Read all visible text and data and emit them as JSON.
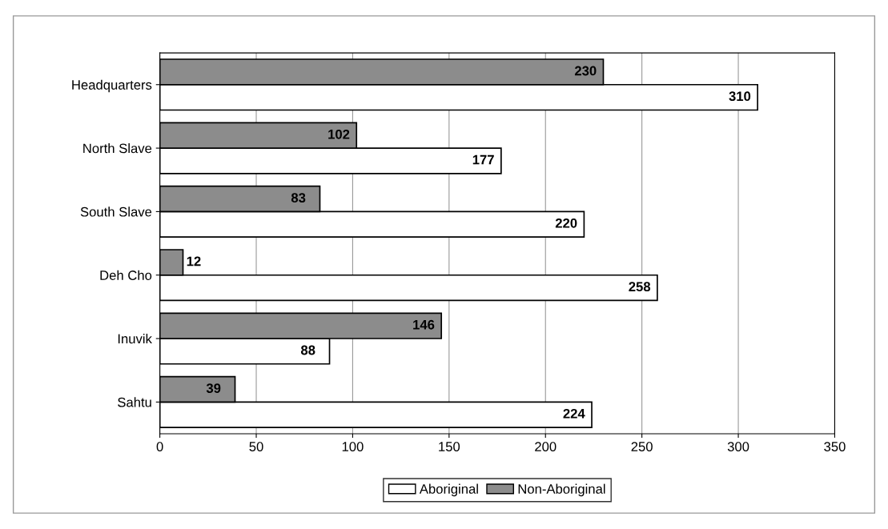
{
  "chart_data": {
    "type": "bar",
    "orientation": "horizontal",
    "categories": [
      "Headquarters",
      "North Slave",
      "South Slave",
      "Deh Cho",
      "Inuvik",
      "Sahtu"
    ],
    "series": [
      {
        "name": "Aboriginal",
        "color": "#ffffff",
        "values": [
          310,
          177,
          220,
          258,
          88,
          224
        ]
      },
      {
        "name": "Non-Aboriginal",
        "color": "#8c8c8c",
        "values": [
          230,
          102,
          83,
          12,
          146,
          39
        ]
      }
    ],
    "xlim": [
      0,
      350
    ],
    "xticks": [
      0,
      50,
      100,
      150,
      200,
      250,
      300,
      350
    ],
    "grid": "x",
    "legend": "bottom",
    "data_labels": true
  }
}
